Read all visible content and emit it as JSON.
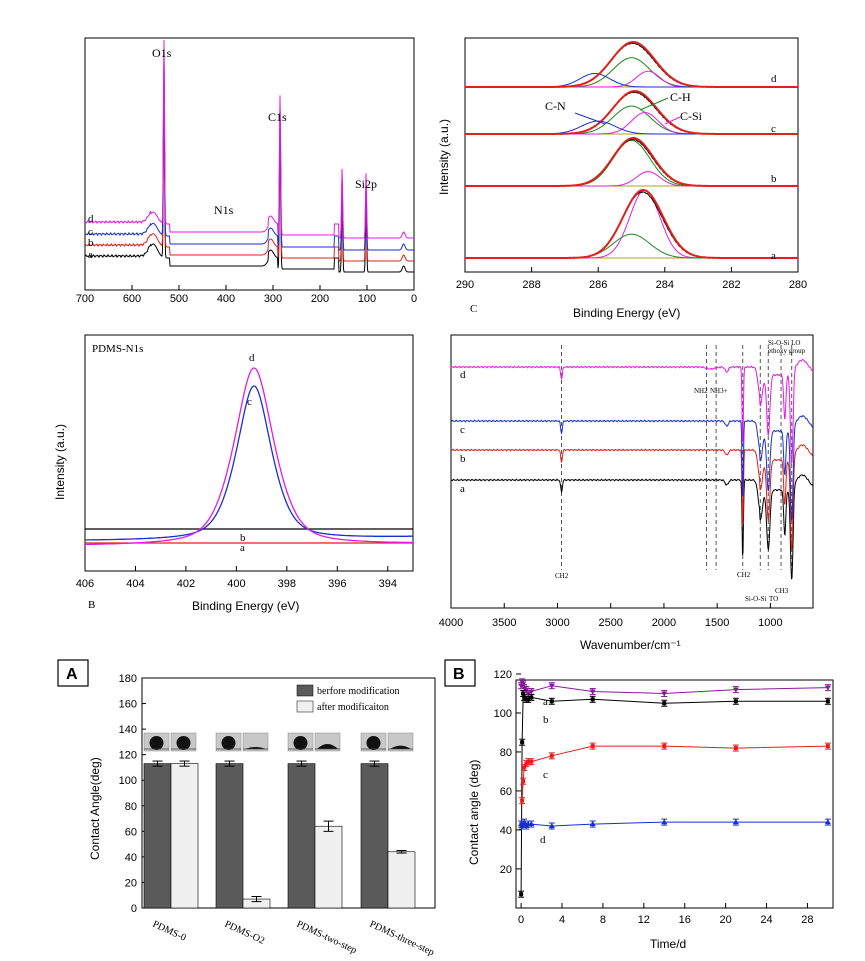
{
  "colors": {
    "black": "#000000",
    "red": "#e0201b",
    "blue": "#1a2fd0",
    "magenta": "#e31ce3",
    "green": "#1a8a1a",
    "purple": "#8a1a9a",
    "olive": "#9a9a30",
    "gray_dark": "#5a5a5a",
    "gray_light": "#f0f0f0"
  },
  "chart_data": [
    {
      "id": "xps-survey",
      "type": "line",
      "xlim": [
        700,
        0
      ],
      "xticks": [
        "700",
        "600",
        "500",
        "400",
        "300",
        "200",
        "100",
        "0"
      ],
      "series_labels": [
        "a",
        "b",
        "c",
        "d"
      ],
      "peak_labels": [
        {
          "text": "O1s",
          "x": 532
        },
        {
          "text": "N1s",
          "x": 400
        },
        {
          "text": "C1s",
          "x": 285
        },
        {
          "text": "Si2p",
          "x": 102
        }
      ]
    },
    {
      "id": "xps-c1s",
      "type": "line",
      "panel_label": "C",
      "xlabel": "Binding Energy (eV)",
      "ylabel": "Intensity (a.u.)",
      "xlim": [
        290,
        280
      ],
      "xticks": [
        "290",
        "288",
        "286",
        "284",
        "282",
        "280"
      ],
      "series_labels": [
        "a",
        "b",
        "c",
        "d"
      ],
      "component_labels": [
        "C-N",
        "C-H",
        "C-Si"
      ]
    },
    {
      "id": "xps-n1s",
      "type": "line",
      "panel_label": "B",
      "title": "PDMS-N1s",
      "xlabel": "Binding Energy (eV)",
      "ylabel": "Intensity (a.u.)",
      "xlim": [
        406,
        393
      ],
      "xticks": [
        "406",
        "404",
        "402",
        "400",
        "398",
        "396",
        "394"
      ],
      "series_labels": [
        "a",
        "b",
        "c",
        "d"
      ]
    },
    {
      "id": "ftir",
      "type": "line",
      "xlabel": "Wavenumber/cm⁻¹",
      "xlim": [
        4000,
        600
      ],
      "xticks": [
        "4000",
        "3500",
        "3000",
        "2500",
        "2000",
        "1500",
        "1000"
      ],
      "series_labels": [
        "a",
        "b",
        "c",
        "d"
      ],
      "band_labels": [
        "CH2",
        "CH2",
        "Si-O-Si",
        "TO",
        "CH3",
        "NH2",
        "NH3+",
        "Si-O-Si LO",
        "ethoxy group"
      ]
    },
    {
      "id": "contact-angle-bars",
      "type": "bar",
      "panel_label": "A",
      "ylabel": "Contact Angle(deg)",
      "ylim": [
        0,
        180
      ],
      "yticks": [
        "0",
        "20",
        "40",
        "60",
        "80",
        "100",
        "120",
        "140",
        "160",
        "180"
      ],
      "categories": [
        "PDMS-0",
        "PDMS-O2",
        "PDMS-two-step",
        "PDMS-three-step"
      ],
      "series": [
        {
          "name": "berfore modification",
          "values": [
            113,
            113,
            113,
            113
          ],
          "errors": [
            2,
            2,
            2,
            2
          ]
        },
        {
          "name": "after modificaiton",
          "values": [
            113,
            7,
            64,
            44
          ],
          "errors": [
            2,
            2,
            4,
            1
          ]
        }
      ]
    },
    {
      "id": "contact-angle-time",
      "type": "line",
      "panel_label": "B",
      "xlabel": "Time/d",
      "ylabel": "Contact angle (deg)",
      "xlim": [
        -0.5,
        30.5
      ],
      "ylim": [
        0,
        120
      ],
      "xticks": [
        "0",
        "4",
        "8",
        "12",
        "16",
        "20",
        "24",
        "28"
      ],
      "yticks": [
        "20",
        "40",
        "60",
        "80",
        "100",
        "120"
      ],
      "series": [
        {
          "label": "a",
          "color": "#8a1a9a",
          "x": [
            0,
            0.1,
            0.2,
            0.3,
            0.5,
            0.7,
            1,
            3,
            7,
            14,
            21,
            30
          ],
          "y": [
            114,
            116,
            115,
            113,
            112,
            110,
            111,
            114,
            111,
            110,
            112,
            113
          ]
        },
        {
          "label": "b",
          "color": "#000000",
          "x": [
            0,
            0.1,
            0.2,
            0.3,
            0.5,
            0.7,
            1,
            3,
            7,
            14,
            21,
            30
          ],
          "y": [
            7,
            85,
            110,
            108,
            107,
            107,
            108,
            106,
            107,
            105,
            106,
            106
          ]
        },
        {
          "label": "c",
          "color": "#e0201b",
          "x": [
            0.1,
            0.2,
            0.3,
            0.5,
            0.7,
            1,
            3,
            7,
            14,
            21,
            30
          ],
          "y": [
            55,
            65,
            72,
            74,
            75,
            75,
            78,
            83,
            83,
            82,
            83
          ]
        },
        {
          "label": "d",
          "color": "#1a2fd0",
          "x": [
            0,
            0.1,
            0.2,
            0.3,
            0.5,
            0.7,
            1,
            3,
            7,
            14,
            21,
            30
          ],
          "y": [
            43,
            42,
            43,
            44,
            42,
            43,
            43,
            42,
            43,
            44,
            44,
            44
          ]
        }
      ]
    }
  ]
}
